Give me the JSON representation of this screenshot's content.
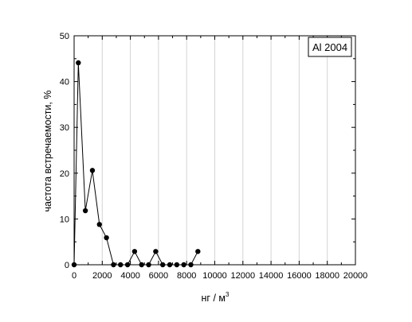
{
  "chart_data": {
    "type": "line",
    "title": "",
    "xlabel": "нг / м",
    "xlabel_superscript": "3",
    "ylabel": "частота встречаемости, %",
    "xlim": [
      0,
      20000
    ],
    "ylim": [
      0,
      50
    ],
    "xticks": [
      0,
      2000,
      4000,
      6000,
      8000,
      10000,
      12000,
      14000,
      16000,
      18000,
      20000
    ],
    "yticks": [
      0,
      10,
      20,
      30,
      40,
      50
    ],
    "grid": "vertical",
    "legend_placement": "top-right",
    "series": [
      {
        "name": "Al 2004",
        "color": "#000000",
        "marker": "circle",
        "x": [
          0,
          300,
          800,
          1300,
          1800,
          2300,
          2800,
          3300,
          3800,
          4300,
          4800,
          5300,
          5800,
          6300,
          6800,
          7300,
          7800,
          8300,
          8800
        ],
        "y": [
          0,
          44.1,
          11.8,
          20.6,
          8.8,
          5.9,
          0,
          0,
          0,
          2.9,
          0,
          0,
          2.9,
          0,
          0,
          0,
          0,
          0,
          2.9
        ]
      }
    ]
  }
}
